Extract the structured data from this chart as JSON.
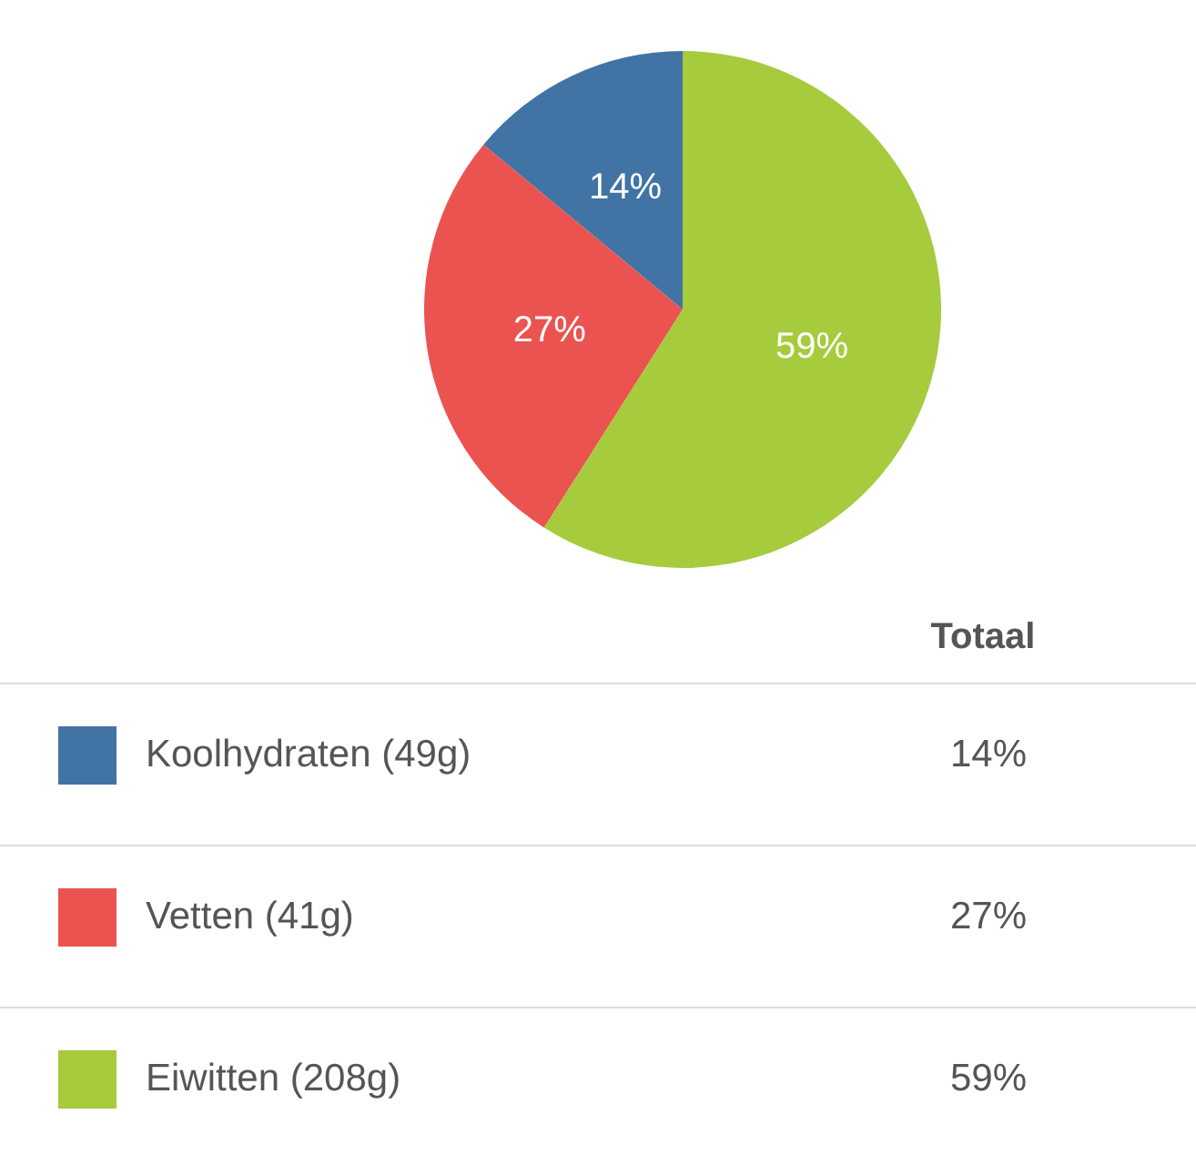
{
  "chart_data": {
    "type": "pie",
    "legend_title": "Totaal",
    "legend": "bottom",
    "categories": [
      "Koolhydraten (49g)",
      "Vetten (41g)",
      "Eiwitten (208g)"
    ],
    "values": [
      14,
      27,
      59
    ],
    "colors": [
      "#4174a5",
      "#eb5350",
      "#a6cb3c"
    ],
    "value_labels": [
      "14%",
      "27%",
      "59%"
    ]
  }
}
